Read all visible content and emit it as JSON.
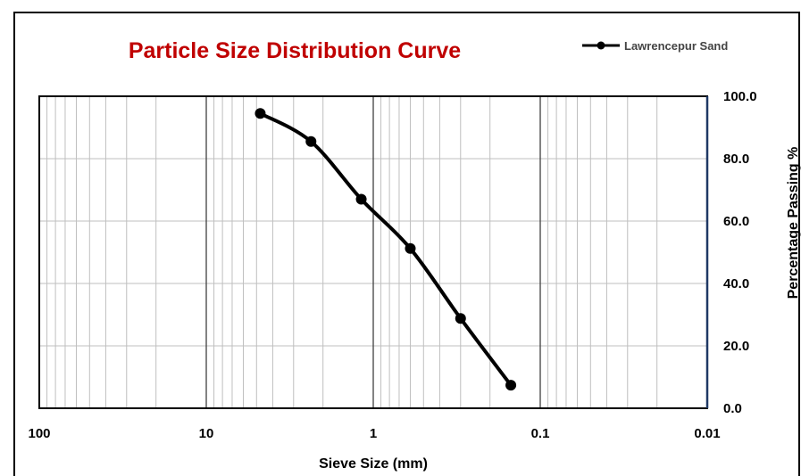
{
  "colors": {
    "title": "#c00000",
    "series": "#000000",
    "grid": "#bfbfbf",
    "major_grid": "#404040",
    "right_axis": "#1f3864",
    "frame": "#000000"
  },
  "chart_data": {
    "type": "line",
    "title": "Particle Size Distribution Curve",
    "xlabel": "Sieve Size (mm)",
    "ylabel": "Percentage Passing %",
    "x_scale": "log",
    "x_reversed": true,
    "xlim": [
      100,
      0.01
    ],
    "ylim": [
      0,
      100
    ],
    "x_ticks": [
      "100",
      "10",
      "1",
      "0.1",
      "0.01"
    ],
    "y_ticks": [
      "0.0",
      "20.0",
      "40.0",
      "60.0",
      "80.0",
      "100.0"
    ],
    "y_axis_side": "right",
    "grid": true,
    "legend_position": "top-right",
    "series": [
      {
        "name": "Lawrencepur Sand",
        "marker": "circle",
        "x": [
          4.75,
          2.36,
          1.18,
          0.6,
          0.3,
          0.15
        ],
        "y": [
          94.5,
          85.5,
          67.0,
          51.2,
          28.8,
          7.4
        ]
      }
    ]
  }
}
